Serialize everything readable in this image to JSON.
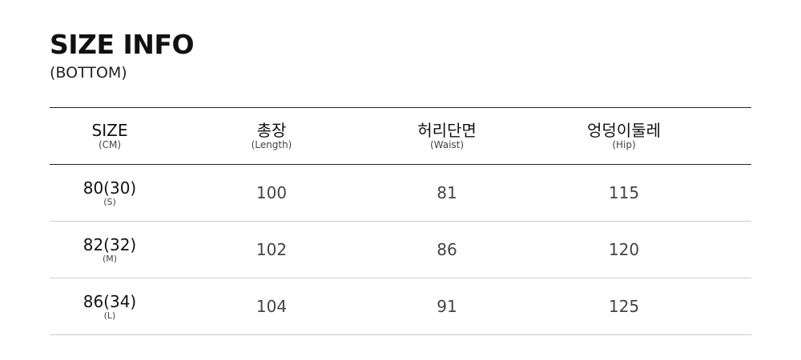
{
  "title": "SIZE INFO",
  "subtitle": "(BOTTOM)",
  "table": {
    "headers": [
      {
        "label": "SIZE",
        "sub": "(CM)"
      },
      {
        "label": "총장",
        "sub": "(Length)"
      },
      {
        "label": "허리단면",
        "sub": "(Waist)"
      },
      {
        "label": "엉덩이둘레",
        "sub": "(Hip)"
      }
    ],
    "rows": [
      {
        "size": "80(30)",
        "size_sub": "(S)",
        "length": "100",
        "waist": "81",
        "hip": "115"
      },
      {
        "size": "82(32)",
        "size_sub": "(M)",
        "length": "102",
        "waist": "86",
        "hip": "120"
      },
      {
        "size": "86(34)",
        "size_sub": "(L)",
        "length": "104",
        "waist": "91",
        "hip": "125"
      }
    ]
  }
}
